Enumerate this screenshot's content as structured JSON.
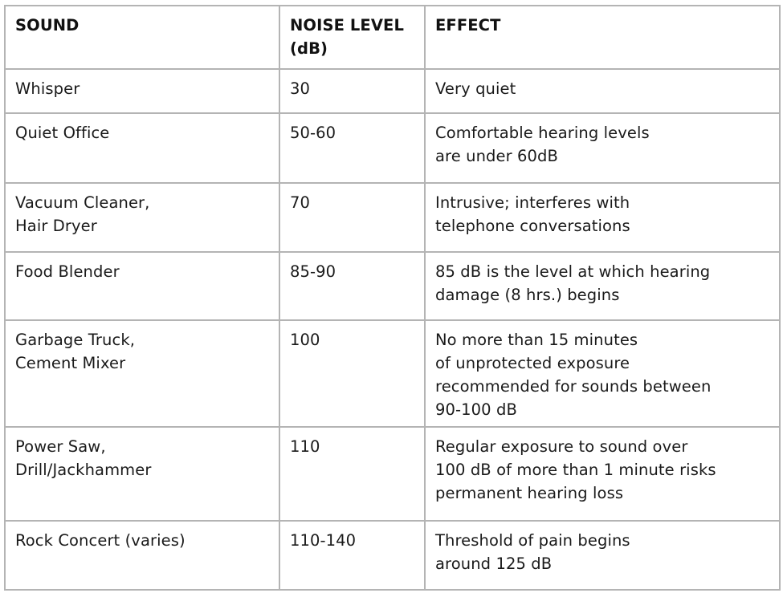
{
  "table": {
    "headers": [
      "SOUND",
      "NOISE LEVEL\n(dB)",
      "EFFECT"
    ],
    "rows": [
      [
        "Whisper",
        "30",
        "Very quiet"
      ],
      [
        "Quiet Office",
        "50-60",
        "Comfortable hearing levels\nare under 60dB"
      ],
      [
        "Vacuum Cleaner,\nHair Dryer",
        "70",
        "Intrusive; interferes with\ntelephone conversations"
      ],
      [
        "Food Blender",
        "85-90",
        "85 dB is the level at which hearing\ndamage (8 hrs.) begins"
      ],
      [
        "Garbage Truck,\nCement Mixer",
        "100",
        "No more than 15 minutes\nof unprotected exposure\nrecommended for sounds between\n90-100 dB"
      ],
      [
        "Power Saw,\nDrill/Jackhammer",
        "110",
        "Regular exposure to sound over\n100 dB of more than 1 minute risks\npermanent hearing loss"
      ],
      [
        "Rock Concert (varies)",
        "110-140",
        "Threshold of pain begins\naround 125 dB"
      ]
    ]
  }
}
